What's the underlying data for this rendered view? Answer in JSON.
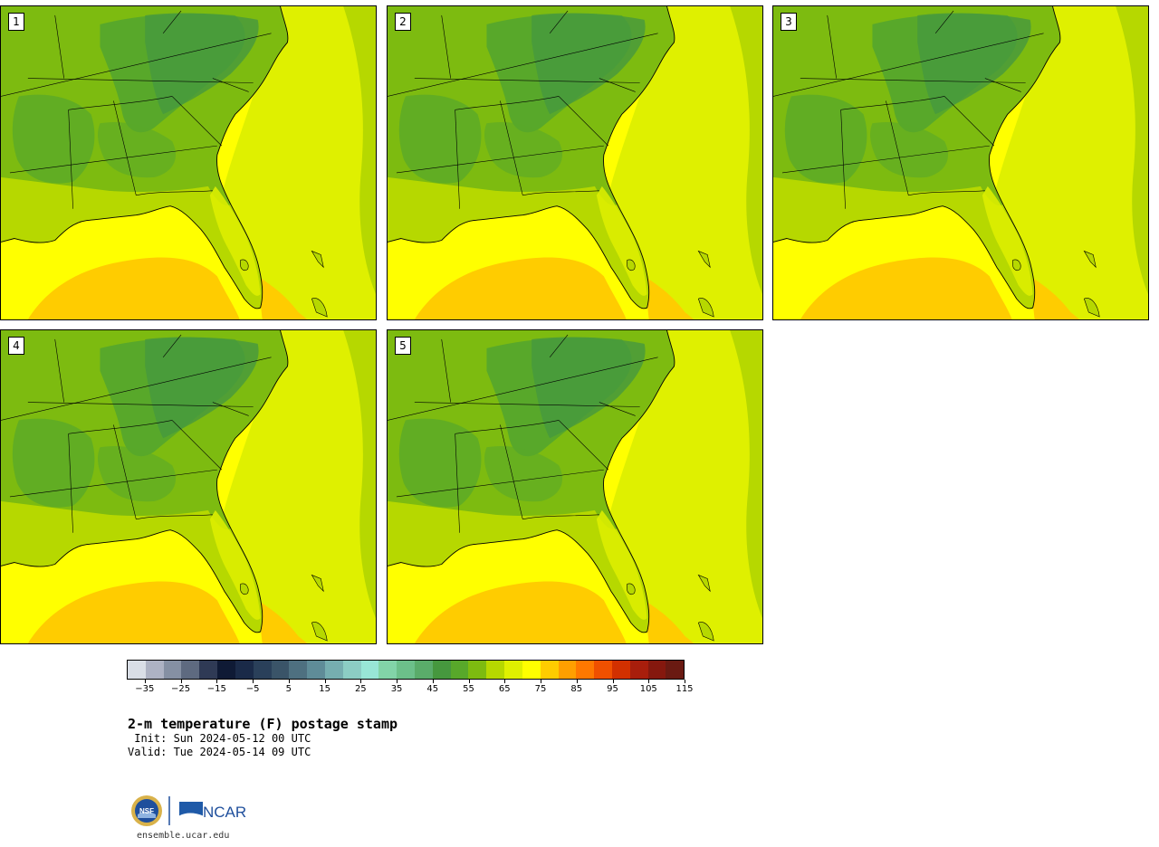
{
  "panels": [
    {
      "label": "1"
    },
    {
      "label": "2"
    },
    {
      "label": "3"
    },
    {
      "label": "4"
    },
    {
      "label": "5"
    }
  ],
  "colorbar": {
    "colors": [
      "#d9dee6",
      "#adb2c3",
      "#8590a3",
      "#5e6a80",
      "#2f3a55",
      "#0f1a35",
      "#1a2a48",
      "#2a405a",
      "#3a5468",
      "#4e7080",
      "#5f8c98",
      "#76aeb0",
      "#8ccdc4",
      "#98e6d6",
      "#82d4a8",
      "#6cc08a",
      "#5aac6a",
      "#46983e",
      "#58a82a",
      "#7dbb10",
      "#b6d800",
      "#dff000",
      "#ffff00",
      "#ffcc00",
      "#ff9f00",
      "#ff7800",
      "#f05000",
      "#d23000",
      "#a81e0c",
      "#85180e",
      "#6a1a12"
    ],
    "ticks": [
      "−35",
      "−25",
      "−15",
      "−5",
      "5",
      "15",
      "25",
      "35",
      "45",
      "55",
      "65",
      "75",
      "85",
      "95",
      "105",
      "115"
    ]
  },
  "title": "2-m temperature (F) postage stamp",
  "init": " Init: Sun 2024-05-12 00 UTC",
  "valid": "Valid: Tue 2024-05-14 09 UTC",
  "logos": {
    "nsf": "NSF",
    "ncar": "NCAR"
  },
  "footer": "ensemble.ucar.edu"
}
